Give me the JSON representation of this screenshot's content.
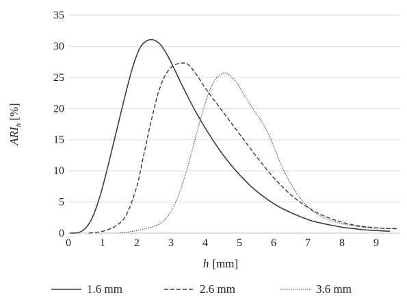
{
  "chart_data": {
    "type": "line",
    "xlabel_italic": "h",
    "xlabel_unit": "[mm]",
    "ylabel_main": "ARI",
    "ylabel_sub": "h",
    "ylabel_unit": "[%]",
    "xlim": [
      0,
      9.7
    ],
    "ylim": [
      0,
      35
    ],
    "xticks": [
      0,
      1,
      2,
      3,
      4,
      5,
      6,
      7,
      8,
      9
    ],
    "yticks": [
      0,
      5,
      10,
      15,
      20,
      25,
      30,
      35
    ],
    "grid": true,
    "legend_position": "bottom",
    "series": [
      {
        "name": "1.6 mm",
        "dash": "solid",
        "color": "#3a3a3a",
        "x": [
          0.05,
          0.3,
          0.5,
          0.7,
          0.9,
          1.1,
          1.3,
          1.5,
          1.7,
          1.9,
          2.1,
          2.3,
          2.5,
          2.7,
          2.9,
          3.1,
          3.3,
          3.5,
          3.7,
          3.9,
          4.1,
          4.4,
          4.7,
          5.0,
          5.3,
          5.6,
          5.9,
          6.2,
          6.5,
          6.8,
          7.1,
          7.4,
          7.7,
          8.0,
          8.3,
          8.6,
          8.9,
          9.2,
          9.4
        ],
        "y": [
          0.0,
          0.1,
          0.8,
          2.5,
          5.5,
          9.5,
          14.0,
          18.5,
          23.0,
          27.0,
          29.8,
          30.9,
          31.0,
          30.2,
          28.5,
          26.3,
          24.0,
          21.8,
          19.7,
          17.8,
          16.0,
          13.5,
          11.3,
          9.4,
          7.7,
          6.3,
          5.1,
          4.1,
          3.3,
          2.6,
          2.0,
          1.6,
          1.25,
          0.95,
          0.75,
          0.55,
          0.45,
          0.35,
          0.3
        ]
      },
      {
        "name": "2.6 mm",
        "dash": "dashed",
        "color": "#3a3a3a",
        "x": [
          0.6,
          1.0,
          1.4,
          1.7,
          2.0,
          2.2,
          2.4,
          2.6,
          2.8,
          3.0,
          3.2,
          3.4,
          3.5,
          3.6,
          3.8,
          4.0,
          4.2,
          4.5,
          4.8,
          5.1,
          5.4,
          5.7,
          6.0,
          6.3,
          6.6,
          6.9,
          7.2,
          7.5,
          7.8,
          8.1,
          8.4,
          8.7,
          9.0,
          9.3,
          9.6
        ],
        "y": [
          0.0,
          0.3,
          1.2,
          3.0,
          7.5,
          12.5,
          17.5,
          22.0,
          25.0,
          26.6,
          27.2,
          27.3,
          27.1,
          26.5,
          25.0,
          23.3,
          21.8,
          19.6,
          17.4,
          15.2,
          13.0,
          10.9,
          8.9,
          7.2,
          5.7,
          4.5,
          3.5,
          2.7,
          2.1,
          1.6,
          1.25,
          1.0,
          0.85,
          0.75,
          0.7
        ]
      },
      {
        "name": "3.6 mm",
        "dash": "dotted",
        "color": "#3a3a3a",
        "x": [
          1.5,
          2.0,
          2.5,
          2.8,
          3.1,
          3.4,
          3.7,
          3.9,
          4.1,
          4.3,
          4.5,
          4.6,
          4.7,
          4.9,
          5.1,
          5.3,
          5.5,
          5.7,
          5.9,
          6.1,
          6.3,
          6.6,
          6.9,
          7.2,
          7.5,
          7.8,
          8.1,
          8.4,
          8.7,
          9.0,
          9.3,
          9.6
        ],
        "y": [
          0.0,
          0.4,
          1.1,
          2.0,
          4.5,
          9.0,
          15.0,
          19.0,
          22.5,
          24.7,
          25.6,
          25.7,
          25.4,
          24.3,
          22.6,
          20.8,
          19.1,
          17.5,
          15.3,
          12.6,
          10.0,
          7.0,
          4.8,
          3.3,
          2.4,
          1.8,
          1.4,
          1.1,
          0.9,
          0.8,
          0.75,
          0.75
        ]
      }
    ]
  }
}
